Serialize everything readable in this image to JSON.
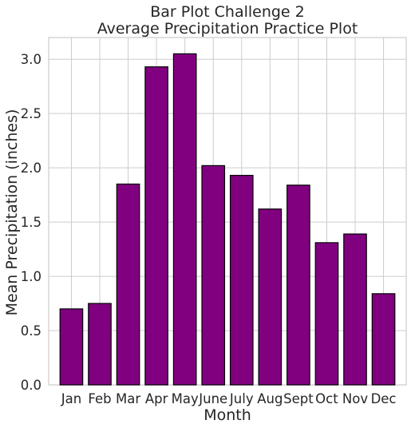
{
  "chart_data": {
    "type": "bar",
    "title": [
      "Bar Plot Challenge 2",
      "Average Precipitation Practice Plot"
    ],
    "xlabel": "Month",
    "ylabel": "Mean Precipitation (inches)",
    "categories": [
      "Jan",
      "Feb",
      "Mar",
      "Apr",
      "May",
      "June",
      "July",
      "Aug",
      "Sept",
      "Oct",
      "Nov",
      "Dec"
    ],
    "values": [
      0.7,
      0.75,
      1.85,
      2.93,
      3.05,
      2.02,
      1.93,
      1.62,
      1.84,
      1.31,
      1.39,
      0.84
    ],
    "ylim": [
      0,
      3.2
    ],
    "yticks": [
      "0.0",
      "0.5",
      "1.0",
      "1.5",
      "2.0",
      "2.5",
      "3.0"
    ],
    "grid": true,
    "colors": {
      "bar_fill": "#800080",
      "bar_edge": "#000000",
      "grid": "#cccccc"
    }
  }
}
